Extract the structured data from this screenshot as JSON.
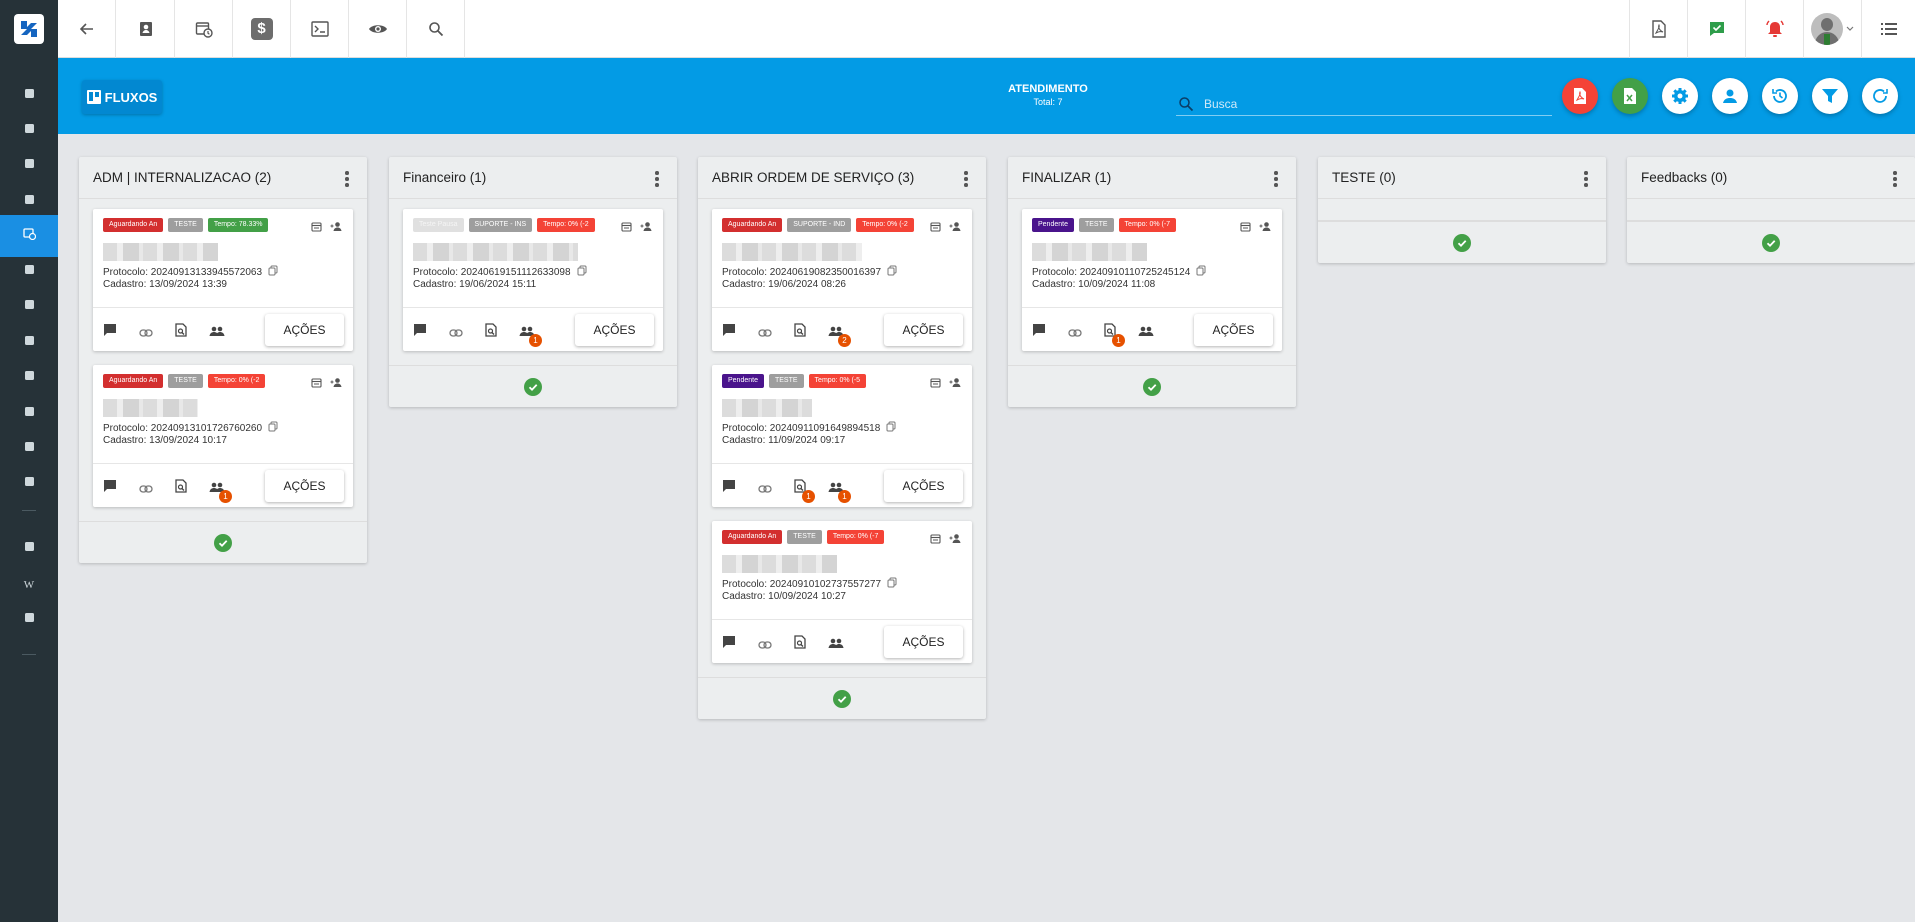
{
  "topbar": {
    "left_icons": [
      "back-arrow-icon",
      "contact-card-icon",
      "calendar-clock-icon",
      "dollar-icon",
      "terminal-icon",
      "eye-icon",
      "search-icon"
    ],
    "right_icons": [
      "pdf-file-icon",
      "chat-check-icon",
      "alarm-bell-icon",
      "user-avatar",
      "menu-list-icon"
    ]
  },
  "header": {
    "brand": "FLUXOS",
    "title": "ATENDIMENTO",
    "subtitle": "Total: 7",
    "search_placeholder": "Busca",
    "action_colors": {
      "pdf": "#f44336",
      "excel": "#43a047",
      "default": "#ffffff"
    }
  },
  "columns": [
    {
      "title": "ADM | INTERNALIZACAO (2)",
      "cards": [
        {
          "tags": [
            {
              "text": "Aguardando An",
              "color": "#d32f2f"
            },
            {
              "text": "TESTE",
              "color": "#9e9e9e"
            },
            {
              "text": "Tempo: 78.33%",
              "color": "#43a047"
            }
          ],
          "protocol": "Protocolo: 20240913133945572063",
          "cadastro": "Cadastro: 13/09/2024 13:39",
          "badge_docs": "",
          "badge_people": ""
        },
        {
          "tags": [
            {
              "text": "Aguardando An",
              "color": "#d32f2f"
            },
            {
              "text": "TESTE",
              "color": "#9e9e9e"
            },
            {
              "text": "Tempo: 0% (-2",
              "color": "#f44336"
            }
          ],
          "protocol": "Protocolo: 20240913101726760260",
          "cadastro": "Cadastro: 13/09/2024 10:17",
          "badge_docs": "",
          "badge_people": "1"
        }
      ]
    },
    {
      "title": "Financeiro (1)",
      "cards": [
        {
          "tags": [
            {
              "text": "Teste Pausa",
              "color": "#e0e0e0"
            },
            {
              "text": "SUPORTE - INS",
              "color": "#9e9e9e"
            },
            {
              "text": "Tempo: 0% (-2",
              "color": "#f44336"
            }
          ],
          "protocol": "Protocolo: 20240619151112633098",
          "cadastro": "Cadastro: 19/06/2024 15:11",
          "badge_docs": "",
          "badge_people": "1"
        }
      ]
    },
    {
      "title": "ABRIR ORDEM DE SERVIÇO (3)",
      "cards": [
        {
          "tags": [
            {
              "text": "Aguardando An",
              "color": "#d32f2f"
            },
            {
              "text": "SUPORTE - IND",
              "color": "#9e9e9e"
            },
            {
              "text": "Tempo: 0% (-2",
              "color": "#f44336"
            }
          ],
          "protocol": "Protocolo: 20240619082350016397",
          "cadastro": "Cadastro: 19/06/2024 08:26",
          "badge_docs": "",
          "badge_people": "2"
        },
        {
          "tags": [
            {
              "text": "Pendente",
              "color": "#4a148c"
            },
            {
              "text": "TESTE",
              "color": "#9e9e9e"
            },
            {
              "text": "Tempo: 0% (-5",
              "color": "#f44336"
            }
          ],
          "protocol": "Protocolo: 20240911091649894518",
          "cadastro": "Cadastro: 11/09/2024 09:17",
          "badge_docs": "1",
          "badge_people": "1"
        },
        {
          "tags": [
            {
              "text": "Aguardando An",
              "color": "#d32f2f"
            },
            {
              "text": "TESTE",
              "color": "#9e9e9e"
            },
            {
              "text": "Tempo: 0% (-7",
              "color": "#f44336"
            }
          ],
          "protocol": "Protocolo: 20240910102737557277",
          "cadastro": "Cadastro: 10/09/2024 10:27",
          "badge_docs": "",
          "badge_people": ""
        }
      ]
    },
    {
      "title": "FINALIZAR (1)",
      "cards": [
        {
          "tags": [
            {
              "text": "Pendente",
              "color": "#4a148c"
            },
            {
              "text": "TESTE",
              "color": "#9e9e9e"
            },
            {
              "text": "Tempo: 0% (-7",
              "color": "#f44336"
            }
          ],
          "protocol": "Protocolo: 20240910110725245124",
          "cadastro": "Cadastro: 10/09/2024 11:08",
          "badge_docs": "1",
          "badge_people": ""
        }
      ]
    },
    {
      "title": "TESTE (0)",
      "cards": []
    },
    {
      "title": "Feedbacks (0)",
      "cards": []
    }
  ],
  "card_action_label": "AÇÕES"
}
